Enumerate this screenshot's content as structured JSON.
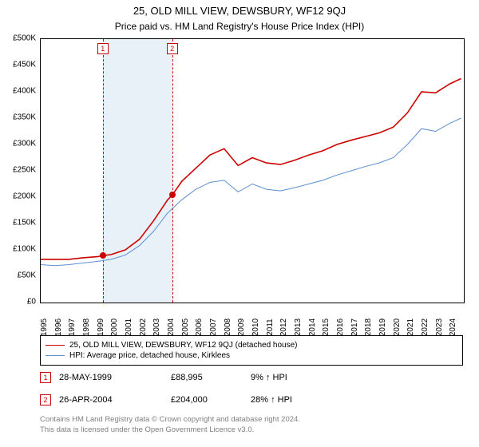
{
  "title": "25, OLD MILL VIEW, DEWSBURY, WF12 9QJ",
  "subtitle": "Price paid vs. HM Land Registry's House Price Index (HPI)",
  "chart": {
    "type": "line",
    "background_color": "#ffffff",
    "plot_border_color": "#000000",
    "shaded_band_color": "#e8f0f8",
    "x": {
      "min": 1995,
      "max": 2025,
      "ticks": [
        1995,
        1996,
        1997,
        1998,
        1999,
        2000,
        2001,
        2002,
        2003,
        2004,
        2005,
        2006,
        2007,
        2008,
        2009,
        2010,
        2011,
        2012,
        2013,
        2014,
        2015,
        2016,
        2017,
        2018,
        2019,
        2020,
        2021,
        2022,
        2023,
        2024
      ],
      "label_fontsize": 10
    },
    "y": {
      "min": 0,
      "max": 500000,
      "step": 50000,
      "labels": [
        "£0",
        "£50K",
        "£100K",
        "£150K",
        "£200K",
        "£250K",
        "£300K",
        "£350K",
        "£400K",
        "£450K",
        "£500K"
      ],
      "label_fontsize": 10
    },
    "shaded_band": {
      "from_year": 1999.4,
      "to_year": 2004.32
    },
    "series": [
      {
        "name": "25, OLD MILL VIEW, DEWSBURY, WF12 9QJ (detached house)",
        "color": "#cc0000",
        "line_width": 1.6,
        "points": [
          [
            1995,
            82000
          ],
          [
            1996,
            82000
          ],
          [
            1997,
            82000
          ],
          [
            1998,
            85000
          ],
          [
            1999,
            87000
          ],
          [
            1999.4,
            88995
          ],
          [
            2000,
            91000
          ],
          [
            2001,
            100000
          ],
          [
            2002,
            120000
          ],
          [
            2003,
            155000
          ],
          [
            2004,
            195000
          ],
          [
            2004.32,
            204000
          ],
          [
            2005,
            230000
          ],
          [
            2006,
            255000
          ],
          [
            2007,
            280000
          ],
          [
            2008,
            292000
          ],
          [
            2009,
            260000
          ],
          [
            2010,
            275000
          ],
          [
            2011,
            265000
          ],
          [
            2012,
            262000
          ],
          [
            2013,
            270000
          ],
          [
            2014,
            280000
          ],
          [
            2015,
            288000
          ],
          [
            2016,
            300000
          ],
          [
            2017,
            308000
          ],
          [
            2018,
            315000
          ],
          [
            2019,
            322000
          ],
          [
            2020,
            333000
          ],
          [
            2021,
            360000
          ],
          [
            2022,
            400000
          ],
          [
            2023,
            398000
          ],
          [
            2024,
            415000
          ],
          [
            2024.8,
            425000
          ]
        ]
      },
      {
        "name": "HPI: Average price, detached house, Kirklees",
        "color": "#5b8fd1",
        "line_width": 1.0,
        "points": [
          [
            1995,
            72000
          ],
          [
            1996,
            70000
          ],
          [
            1997,
            72000
          ],
          [
            1998,
            75000
          ],
          [
            1999,
            78000
          ],
          [
            2000,
            82000
          ],
          [
            2001,
            90000
          ],
          [
            2002,
            108000
          ],
          [
            2003,
            135000
          ],
          [
            2004,
            170000
          ],
          [
            2005,
            195000
          ],
          [
            2006,
            215000
          ],
          [
            2007,
            228000
          ],
          [
            2008,
            232000
          ],
          [
            2009,
            210000
          ],
          [
            2010,
            225000
          ],
          [
            2011,
            215000
          ],
          [
            2012,
            212000
          ],
          [
            2013,
            218000
          ],
          [
            2014,
            225000
          ],
          [
            2015,
            232000
          ],
          [
            2016,
            242000
          ],
          [
            2017,
            250000
          ],
          [
            2018,
            258000
          ],
          [
            2019,
            265000
          ],
          [
            2020,
            275000
          ],
          [
            2021,
            300000
          ],
          [
            2022,
            330000
          ],
          [
            2023,
            325000
          ],
          [
            2024,
            340000
          ],
          [
            2024.8,
            350000
          ]
        ]
      }
    ],
    "sales": [
      {
        "n": "1",
        "year": 1999.4,
        "price": 88995
      },
      {
        "n": "2",
        "year": 2004.32,
        "price": 204000
      }
    ]
  },
  "legend": [
    {
      "color": "#cc0000",
      "width": 1.6,
      "label": "25, OLD MILL VIEW, DEWSBURY, WF12 9QJ (detached house)"
    },
    {
      "color": "#5b8fd1",
      "width": 1.0,
      "label": "HPI: Average price, detached house, Kirklees"
    }
  ],
  "sales_table": [
    {
      "n": "1",
      "date": "28-MAY-1999",
      "price": "£88,995",
      "delta": "9% ↑ HPI"
    },
    {
      "n": "2",
      "date": "26-APR-2004",
      "price": "£204,000",
      "delta": "28% ↑ HPI"
    }
  ],
  "footer_line1": "Contains HM Land Registry data © Crown copyright and database right 2024.",
  "footer_line2": "This data is licensed under the Open Government Licence v3.0."
}
